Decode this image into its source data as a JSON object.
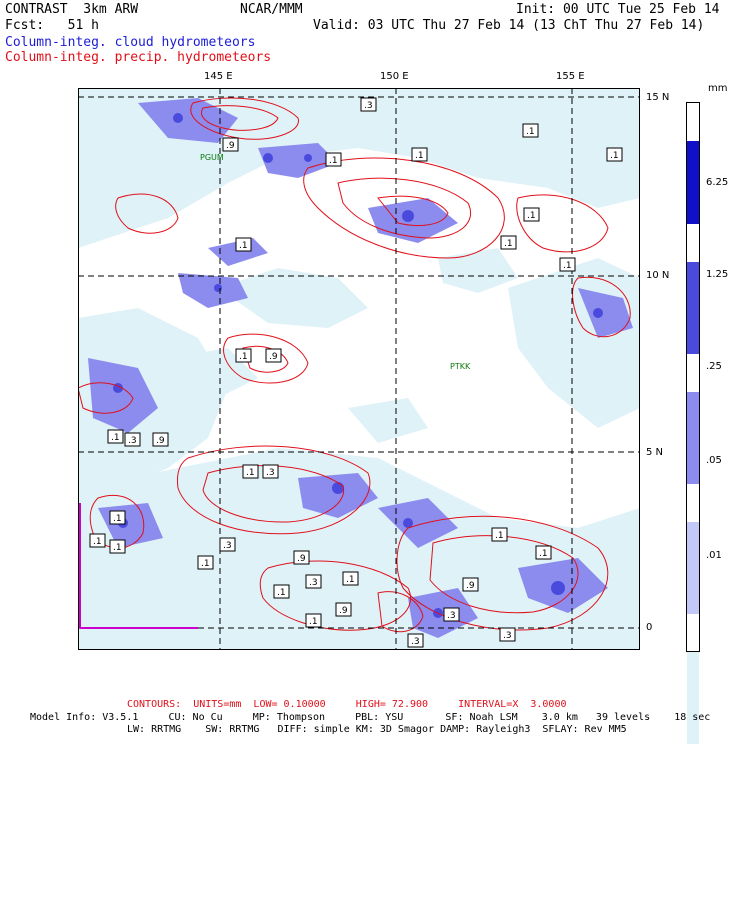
{
  "header": {
    "model": "CONTRAST  3km ARW",
    "institution": "NCAR/MMM",
    "init": "Init: 00 UTC Tue 25 Feb 14",
    "fcst": "Fcst:   51 h",
    "valid": "Valid: 03 UTC Thu 27 Feb 14 (13 ChT Thu 27 Feb 14)",
    "field_cloud": "Column-integ. cloud hydrometeors",
    "field_precip": "Column-integ. precip. hydrometeors"
  },
  "map": {
    "lon_labels": [
      "145 E",
      "150 E",
      "155 E"
    ],
    "lat_labels": [
      "15 N",
      "10 N",
      "5 N",
      "0"
    ],
    "stations": [
      "PGUM",
      "PTKK"
    ],
    "contour_labels": [
      ".3",
      ".9",
      ".1",
      ".1",
      ".1",
      ".1",
      ".1",
      ".1",
      ".1",
      ".1",
      ".1",
      ".9",
      ".1",
      ".1",
      ".3",
      ".9",
      ".1",
      ".3",
      ".1",
      ".1",
      ".1",
      ".3",
      ".1",
      ".9",
      ".1",
      ".1",
      ".3",
      ".1",
      ".9",
      ".1",
      ".9",
      ".3",
      ".1",
      ".3",
      ".3"
    ]
  },
  "colorbar": {
    "unit": "mm",
    "labels": [
      "6.25",
      "1.25",
      ".25",
      ".05",
      ".01"
    ],
    "colors": [
      "#1010c8",
      "#4a4add",
      "#8c8cee",
      "#c4c8f6",
      "#dff2f8",
      "#ffffff"
    ]
  },
  "colors": {
    "cloud_light": "#dff2f8",
    "cloud_mid": "#8c8cee",
    "cloud_dark": "#4a4add",
    "precip_contour": "#e0101a",
    "coast": "#cc00cc"
  },
  "footer": {
    "contours": "CONTOURS:  UNITS=mm  LOW= 0.10000     HIGH= 72.900     INTERVAL=X  3.0000",
    "line1": "Model Info: V3.5.1     CU: No Cu     MP: Thompson     PBL: YSU       SF: Noah LSM    3.0 km   39 levels    18 sec",
    "line2": "LW: RRTMG    SW: RRTMG   DIFF: simple KM: 3D Smagor DAMP: Rayleigh3  SFLAY: Rev MM5"
  }
}
